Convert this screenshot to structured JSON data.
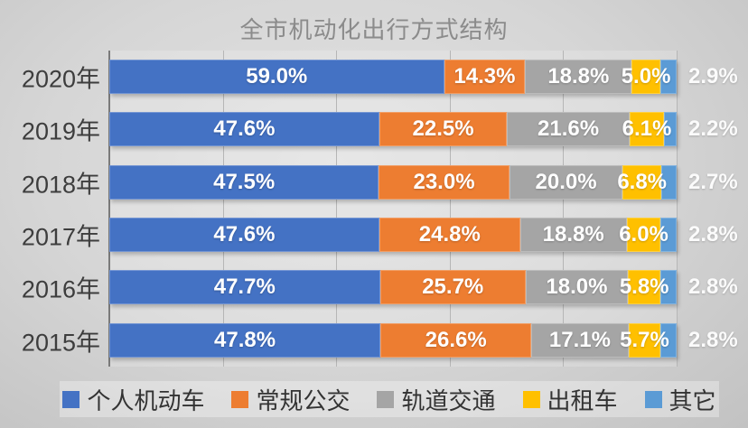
{
  "title": "全市机动化出行方式结构",
  "chart_data": {
    "type": "bar",
    "orientation": "horizontal",
    "stacked": true,
    "title": "全市机动化出行方式结构",
    "categories": [
      "2020年",
      "2019年",
      "2018年",
      "2017年",
      "2016年",
      "2015年"
    ],
    "series": [
      {
        "name": "个人机动车",
        "color": "#4472C4",
        "values": [
          59.0,
          47.6,
          47.5,
          47.6,
          47.7,
          47.8
        ]
      },
      {
        "name": "常规公交",
        "color": "#ED7D31",
        "values": [
          14.3,
          22.5,
          23.0,
          24.8,
          25.7,
          26.6
        ]
      },
      {
        "name": "轨道交通",
        "color": "#A5A5A5",
        "values": [
          18.8,
          21.6,
          20.0,
          18.8,
          18.0,
          17.1
        ]
      },
      {
        "name": "出租车",
        "color": "#FFC000",
        "values": [
          5.0,
          6.1,
          6.8,
          6.0,
          5.8,
          5.7
        ]
      },
      {
        "name": "其它",
        "color": "#5B9BD5",
        "values": [
          2.9,
          2.2,
          2.7,
          2.8,
          2.8,
          2.8
        ]
      }
    ],
    "xlim": [
      0,
      100
    ],
    "gridline_step": 20,
    "grid": true,
    "xlabel": "",
    "ylabel": "",
    "legend_position": "bottom",
    "value_decimals": 1,
    "value_suffix": "%",
    "value_labels": "inside-center",
    "last_series_label_outside": true
  },
  "style": {
    "background_center": "#e2e2e2",
    "background_edge": "#c2c2c2",
    "plot_fill": "rgba(255,255,255,0.18)",
    "gridline_color": "#b6b6b6",
    "axis_line_color": "#7a7a7a",
    "title_color": "#8b8b8b",
    "category_label_color": "#3d3d3d",
    "bar_label_color": "#ffffff",
    "legend_text_color": "#333333"
  }
}
